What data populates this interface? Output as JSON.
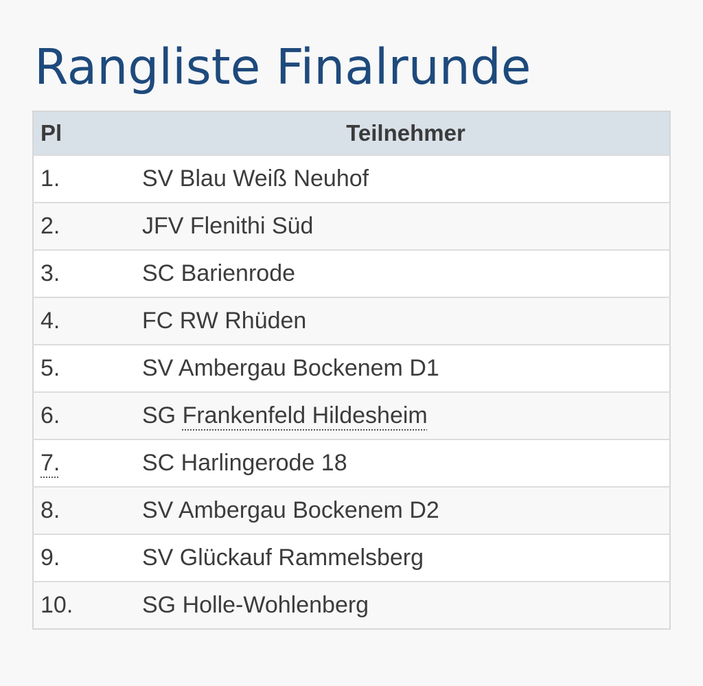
{
  "page": {
    "title": "Rangliste Finalrunde"
  },
  "table": {
    "headers": {
      "place": "Pl",
      "team": "Teilnehmer"
    },
    "rows": [
      {
        "place": "1.",
        "team": "SV Blau Weiß Neuhof"
      },
      {
        "place": "2.",
        "team": "JFV Flenithi Süd"
      },
      {
        "place": "3.",
        "team": "SC Barienrode"
      },
      {
        "place": "4.",
        "team": "FC RW Rhüden"
      },
      {
        "place": "5.",
        "team": "SV Ambergau Bockenem D1"
      },
      {
        "place": "6.",
        "team_prefix": "SG ",
        "team_link": "Frankenfeld Hildesheim"
      },
      {
        "place": "7.",
        "team": "SC Harlingerode 18"
      },
      {
        "place": "8.",
        "team": "SV Ambergau Bockenem D2"
      },
      {
        "place": "9.",
        "team": "SV Glückauf Rammelsberg"
      },
      {
        "place": "10.",
        "team": "SG Holle-Wohlenberg"
      }
    ]
  },
  "colors": {
    "title": "#1e4a7c",
    "header_bg": "#d8e0e8",
    "background": "#f8f8f8"
  }
}
